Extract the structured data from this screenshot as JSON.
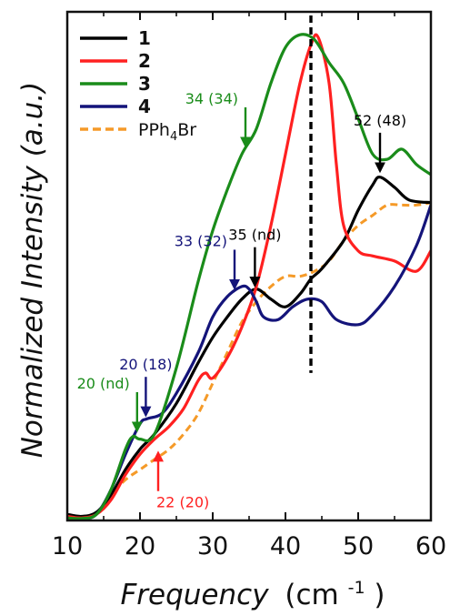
{
  "chart_data": {
    "type": "line",
    "xlabel": "Frequency",
    "xlabel_unit": "(cm",
    "xlabel_sup": "-1",
    "xlabel_close": ")",
    "ylabel": "Normalized Intensity (a.u.)",
    "xlim": [
      10,
      60
    ],
    "ylim": [
      0,
      1.0
    ],
    "x_ticks": [
      {
        "value": 10,
        "label": "10"
      },
      {
        "value": 20,
        "label": "20"
      },
      {
        "value": 30,
        "label": "30"
      },
      {
        "value": 40,
        "label": "40"
      },
      {
        "value": 50,
        "label": "50"
      },
      {
        "value": 60,
        "label": "60"
      }
    ],
    "y_ticks_labeled": false,
    "grid": false,
    "legend_position": "top-left",
    "reference_line": {
      "x": 43.5,
      "style": "dashed",
      "color": "#000000"
    },
    "series": [
      {
        "name": "1",
        "color": "#000000",
        "dash": false,
        "points": [
          [
            10,
            0.012
          ],
          [
            12,
            0.008
          ],
          [
            14,
            0.016
          ],
          [
            16,
            0.05
          ],
          [
            18,
            0.1
          ],
          [
            20,
            0.14
          ],
          [
            22,
            0.17
          ],
          [
            25,
            0.23
          ],
          [
            28,
            0.31
          ],
          [
            30,
            0.36
          ],
          [
            32,
            0.4
          ],
          [
            34,
            0.435
          ],
          [
            36,
            0.455
          ],
          [
            38,
            0.435
          ],
          [
            40,
            0.42
          ],
          [
            42,
            0.445
          ],
          [
            43.5,
            0.475
          ],
          [
            45,
            0.495
          ],
          [
            48,
            0.55
          ],
          [
            50,
            0.61
          ],
          [
            52,
            0.66
          ],
          [
            53,
            0.675
          ],
          [
            55,
            0.655
          ],
          [
            57,
            0.63
          ],
          [
            60,
            0.625
          ]
        ]
      },
      {
        "name": "2",
        "color": "#ff2020",
        "dash": false,
        "points": [
          [
            10,
            0.008
          ],
          [
            12,
            0.005
          ],
          [
            14,
            0.012
          ],
          [
            16,
            0.04
          ],
          [
            18,
            0.09
          ],
          [
            20,
            0.13
          ],
          [
            22,
            0.16
          ],
          [
            24,
            0.185
          ],
          [
            26,
            0.22
          ],
          [
            28,
            0.275
          ],
          [
            29,
            0.29
          ],
          [
            30,
            0.28
          ],
          [
            32,
            0.32
          ],
          [
            34,
            0.38
          ],
          [
            36,
            0.46
          ],
          [
            38,
            0.58
          ],
          [
            40,
            0.72
          ],
          [
            42,
            0.86
          ],
          [
            43.5,
            0.935
          ],
          [
            44.5,
            0.95
          ],
          [
            46,
            0.86
          ],
          [
            47,
            0.7
          ],
          [
            48,
            0.58
          ],
          [
            50,
            0.53
          ],
          [
            52,
            0.52
          ],
          [
            55,
            0.51
          ],
          [
            58,
            0.49
          ],
          [
            60,
            0.53
          ]
        ]
      },
      {
        "name": "3",
        "color": "#1a8c1a",
        "dash": false,
        "points": [
          [
            10,
            0.005
          ],
          [
            12,
            0.004
          ],
          [
            14,
            0.012
          ],
          [
            16,
            0.06
          ],
          [
            18,
            0.14
          ],
          [
            19,
            0.165
          ],
          [
            20,
            0.16
          ],
          [
            22,
            0.17
          ],
          [
            25,
            0.3
          ],
          [
            28,
            0.47
          ],
          [
            30,
            0.57
          ],
          [
            32,
            0.65
          ],
          [
            34,
            0.72
          ],
          [
            36,
            0.77
          ],
          [
            38,
            0.86
          ],
          [
            40,
            0.93
          ],
          [
            42,
            0.955
          ],
          [
            44,
            0.945
          ],
          [
            46,
            0.9
          ],
          [
            48,
            0.86
          ],
          [
            50,
            0.79
          ],
          [
            52,
            0.72
          ],
          [
            54,
            0.71
          ],
          [
            56,
            0.73
          ],
          [
            58,
            0.7
          ],
          [
            60,
            0.68
          ]
        ]
      },
      {
        "name": "4",
        "color": "#14147a",
        "dash": false,
        "points": [
          [
            10,
            0.003
          ],
          [
            12,
            0.003
          ],
          [
            14,
            0.012
          ],
          [
            16,
            0.06
          ],
          [
            18,
            0.13
          ],
          [
            20,
            0.19
          ],
          [
            21,
            0.2
          ],
          [
            23,
            0.21
          ],
          [
            25,
            0.25
          ],
          [
            28,
            0.33
          ],
          [
            30,
            0.4
          ],
          [
            32,
            0.44
          ],
          [
            34,
            0.46
          ],
          [
            35,
            0.455
          ],
          [
            36,
            0.43
          ],
          [
            37,
            0.4
          ],
          [
            39,
            0.395
          ],
          [
            41,
            0.42
          ],
          [
            43,
            0.435
          ],
          [
            45,
            0.43
          ],
          [
            47,
            0.395
          ],
          [
            50,
            0.385
          ],
          [
            52,
            0.405
          ],
          [
            55,
            0.46
          ],
          [
            58,
            0.54
          ],
          [
            60,
            0.62
          ]
        ]
      },
      {
        "name_prefix": "PPh",
        "name_sub": "4",
        "name_suffix": "Br",
        "color": "#f59a28",
        "dash": true,
        "points": [
          [
            10,
            0.004
          ],
          [
            12,
            0.003
          ],
          [
            14,
            0.012
          ],
          [
            16,
            0.05
          ],
          [
            18,
            0.08
          ],
          [
            20,
            0.1
          ],
          [
            22,
            0.12
          ],
          [
            24,
            0.14
          ],
          [
            26,
            0.17
          ],
          [
            28,
            0.21
          ],
          [
            30,
            0.27
          ],
          [
            32,
            0.33
          ],
          [
            34,
            0.39
          ],
          [
            36,
            0.43
          ],
          [
            38,
            0.46
          ],
          [
            40,
            0.48
          ],
          [
            42,
            0.48
          ],
          [
            44,
            0.49
          ],
          [
            46,
            0.51
          ],
          [
            48,
            0.55
          ],
          [
            50,
            0.58
          ],
          [
            52,
            0.6
          ],
          [
            54,
            0.62
          ],
          [
            56,
            0.62
          ],
          [
            58,
            0.62
          ],
          [
            60,
            0.625
          ]
        ]
      }
    ],
    "annotations": [
      {
        "text": "52 (48)",
        "color": "#000000",
        "x": 53,
        "y": 0.68,
        "label_side": "above"
      },
      {
        "text": "35 (nd)",
        "color": "#000000",
        "x": 35.8,
        "y": 0.455,
        "label_side": "above"
      },
      {
        "text": "34 (34)",
        "color": "#1a8c1a",
        "x": 34.5,
        "y": 0.73,
        "label_side": "above-left"
      },
      {
        "text": "33 (32)",
        "color": "#14147a",
        "x": 33,
        "y": 0.45,
        "label_side": "above-left"
      },
      {
        "text": "20 (18)",
        "color": "#14147a",
        "x": 20.8,
        "y": 0.2,
        "label_side": "above"
      },
      {
        "text": "20 (nd)",
        "color": "#1a8c1a",
        "x": 19.6,
        "y": 0.17,
        "label_side": "above-left"
      },
      {
        "text": "22 (20)",
        "color": "#ff2020",
        "x": 22.5,
        "y": 0.14,
        "label_side": "below"
      }
    ]
  }
}
